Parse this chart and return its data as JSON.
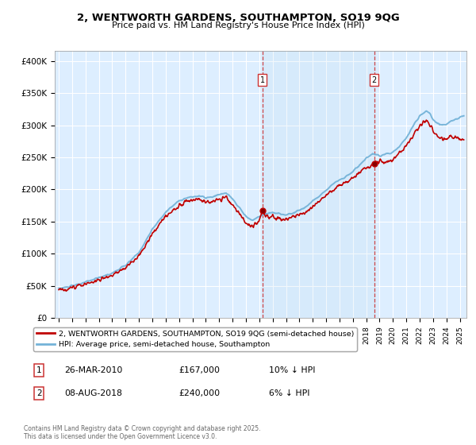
{
  "title1": "2, WENTWORTH GARDENS, SOUTHAMPTON, SO19 9QG",
  "title2": "Price paid vs. HM Land Registry's House Price Index (HPI)",
  "ylabel_ticks": [
    "£0",
    "£50K",
    "£100K",
    "£150K",
    "£200K",
    "£250K",
    "£300K",
    "£350K",
    "£400K"
  ],
  "ytick_values": [
    0,
    50000,
    100000,
    150000,
    200000,
    250000,
    300000,
    350000,
    400000
  ],
  "ylim": [
    0,
    415000
  ],
  "xlim_start": 1994.7,
  "xlim_end": 2025.5,
  "hpi_color": "#74b3d8",
  "price_color": "#c00000",
  "bg_plot": "#ddeeff",
  "bg_fig": "#ffffff",
  "grid_color": "#ffffff",
  "purchase1_x": 2010.23,
  "purchase1_y": 167000,
  "purchase2_x": 2018.6,
  "purchase2_y": 240000,
  "legend_line1": "2, WENTWORTH GARDENS, SOUTHAMPTON, SO19 9QG (semi-detached house)",
  "legend_line2": "HPI: Average price, semi-detached house, Southampton",
  "annotation1_label": "1",
  "annotation1_date": "26-MAR-2010",
  "annotation1_price": "£167,000",
  "annotation1_hpi": "10% ↓ HPI",
  "annotation2_label": "2",
  "annotation2_date": "08-AUG-2018",
  "annotation2_price": "£240,000",
  "annotation2_hpi": "6% ↓ HPI",
  "footnote": "Contains HM Land Registry data © Crown copyright and database right 2025.\nThis data is licensed under the Open Government Licence v3.0."
}
